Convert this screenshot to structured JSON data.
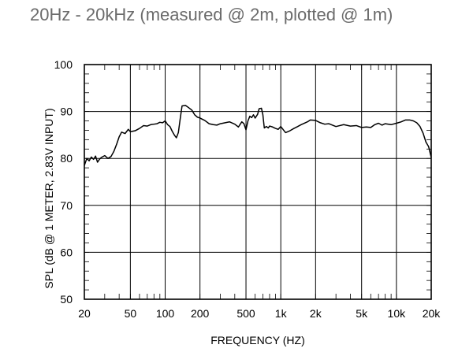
{
  "header": {
    "title": "20Hz - 20kHz (measured @ 2m, plotted @ 1m)"
  },
  "chart_data": {
    "type": "line",
    "title": "",
    "xlabel": "FREQUENCY  (HZ)",
    "ylabel": "SPL (dB @ 1 METER, 2.83V INPUT)",
    "x_scale": "log",
    "xlim": [
      20,
      20000
    ],
    "ylim": [
      50,
      100
    ],
    "grid": true,
    "x_ticks": [
      20,
      50,
      100,
      200,
      500,
      1000,
      2000,
      5000,
      10000,
      20000
    ],
    "x_tick_labels": [
      "20",
      "50",
      "100",
      "200",
      "500",
      "1k",
      "2k",
      "5k",
      "10k",
      "20k"
    ],
    "y_ticks": [
      50,
      60,
      70,
      80,
      90,
      100
    ],
    "y_tick_labels": [
      "50",
      "60",
      "70",
      "80",
      "90",
      "100"
    ],
    "series": [
      {
        "color": "#000000",
        "x": [
          20,
          21,
          22,
          23,
          24,
          25,
          26,
          27,
          28,
          30,
          32,
          34,
          36,
          38,
          40,
          42,
          45,
          48,
          50,
          55,
          60,
          65,
          70,
          75,
          80,
          85,
          90,
          95,
          100,
          105,
          110,
          115,
          120,
          125,
          130,
          135,
          140,
          150,
          160,
          170,
          180,
          190,
          200,
          220,
          240,
          260,
          280,
          300,
          330,
          360,
          400,
          430,
          460,
          480,
          500,
          520,
          540,
          560,
          580,
          600,
          630,
          650,
          680,
          700,
          720,
          750,
          780,
          800,
          850,
          900,
          950,
          1000,
          1100,
          1200,
          1300,
          1400,
          1500,
          1700,
          1800,
          2000,
          2200,
          2400,
          2600,
          3000,
          3500,
          4000,
          4500,
          5000,
          5500,
          6000,
          6500,
          7000,
          7500,
          8000,
          9000,
          10000,
          11000,
          12000,
          13000,
          14000,
          15000,
          16000,
          17000,
          18000,
          19000,
          20000
        ],
        "y": [
          78.5,
          80,
          79.5,
          80.3,
          79.8,
          80.5,
          79.2,
          79.8,
          80.2,
          80.6,
          80,
          80.4,
          81.5,
          83,
          84.6,
          85.6,
          85.3,
          86.2,
          85.7,
          85.9,
          86.4,
          87,
          86.9,
          87.2,
          87.3,
          87.4,
          87.7,
          87.6,
          88,
          87.2,
          86.8,
          85.8,
          85,
          84.4,
          85.5,
          88.5,
          91.2,
          91.3,
          90.8,
          90.3,
          89.3,
          88.8,
          88.6,
          88.1,
          87.4,
          87.2,
          87.1,
          87.4,
          87.6,
          87.8,
          87.3,
          86.7,
          87.8,
          87.4,
          86.1,
          88,
          89,
          88.7,
          89.3,
          88.6,
          89.4,
          90.6,
          90.7,
          89.3,
          86.5,
          86.8,
          86.5,
          86.9,
          86.7,
          86.4,
          86.2,
          86.8,
          85.5,
          85.9,
          86.4,
          86.8,
          87.2,
          87.8,
          88.2,
          88.1,
          87.6,
          87.3,
          87.4,
          86.8,
          87.2,
          86.9,
          87,
          86.6,
          86.7,
          86.6,
          87.2,
          87.5,
          87.1,
          87.4,
          87.2,
          87.5,
          87.8,
          88.2,
          88.2,
          88,
          87.6,
          86.8,
          85.4,
          83.5,
          82.5,
          80.2
        ]
      }
    ]
  }
}
